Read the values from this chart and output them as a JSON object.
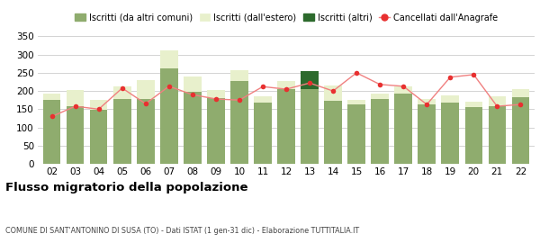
{
  "years": [
    "02",
    "03",
    "04",
    "05",
    "06",
    "07",
    "08",
    "09",
    "10",
    "11",
    "12",
    "13",
    "14",
    "15",
    "16",
    "17",
    "18",
    "19",
    "20",
    "21",
    "22"
  ],
  "iscritti_comuni": [
    175,
    158,
    148,
    178,
    178,
    262,
    198,
    180,
    228,
    168,
    205,
    205,
    172,
    162,
    178,
    192,
    163,
    168,
    155,
    158,
    183
  ],
  "iscritti_estero": [
    17,
    45,
    28,
    35,
    52,
    50,
    42,
    22,
    28,
    18,
    22,
    0,
    42,
    13,
    14,
    20,
    14,
    20,
    15,
    28,
    22
  ],
  "iscritti_altri": [
    0,
    0,
    0,
    0,
    0,
    0,
    0,
    0,
    0,
    0,
    0,
    50,
    0,
    0,
    0,
    0,
    0,
    0,
    0,
    0,
    0
  ],
  "cancellati": [
    130,
    158,
    150,
    208,
    165,
    213,
    190,
    178,
    175,
    212,
    205,
    222,
    200,
    250,
    218,
    213,
    163,
    238,
    245,
    158,
    163
  ],
  "color_comuni": "#8fac6e",
  "color_estero": "#e8f0cc",
  "color_altri": "#2d6a2d",
  "color_cancellati": "#e83030",
  "color_line": "#f08080",
  "color_grid": "#cccccc",
  "ylim": [
    0,
    360
  ],
  "yticks": [
    0,
    50,
    100,
    150,
    200,
    250,
    300,
    350
  ],
  "title": "Flusso migratorio della popolazione",
  "subtitle": "COMUNE DI SANT'ANTONINO DI SUSA (TO) - Dati ISTAT (1 gen-31 dic) - Elaborazione TUTTITALIA.IT",
  "legend_labels": [
    "Iscritti (da altri comuni)",
    "Iscritti (dall'estero)",
    "Iscritti (altri)",
    "Cancellati dall'Anagrafe"
  ],
  "bg_color": "#ffffff"
}
